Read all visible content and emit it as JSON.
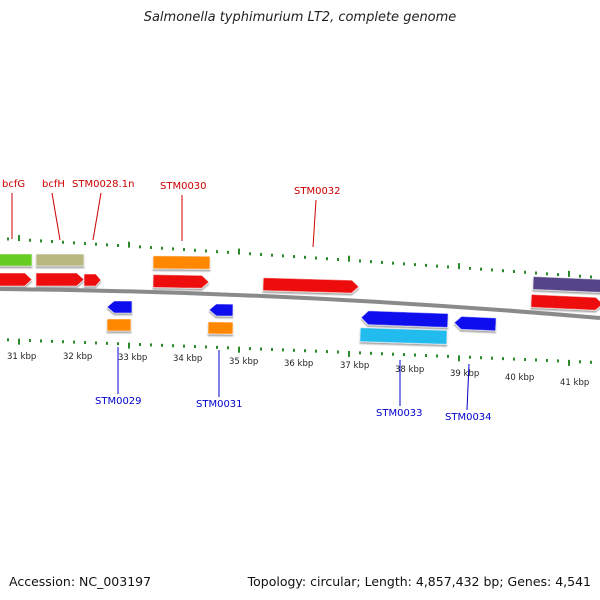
{
  "title": "Salmonella typhimurium LT2, complete genome",
  "accession": "Accession: NC_003197",
  "summary": "Topology: circular; Length: 4,857,432 bp; Genes: 4,541",
  "colors": {
    "forward_label": "#cc0000",
    "reverse_label": "#0000cc",
    "tick": "#2a8a2a",
    "backbone": "#888888"
  },
  "scale_labels": [
    "31 kbp",
    "32 kbp",
    "33 kbp",
    "34 kbp",
    "35 kbp",
    "36 kbp",
    "37 kbp",
    "38 kbp",
    "39 kbp",
    "40 kbp",
    "41 kbp"
  ],
  "forward_gene_labels": [
    "bcfG",
    "bcfH",
    "STM0028.1n",
    "STM0030",
    "STM0032"
  ],
  "reverse_gene_labels": [
    "STM0029",
    "STM0031",
    "STM0033",
    "STM0034"
  ],
  "features": [
    {
      "kind": "forward-cds",
      "color": "#ee1111",
      "strand": "+"
    },
    {
      "kind": "reverse-cds",
      "color": "#1111ee",
      "strand": "-"
    },
    {
      "kind": "forward-product",
      "color": "#ff8800",
      "strand": "+"
    },
    {
      "kind": "reverse-product",
      "color": "#ff8800",
      "strand": "-"
    },
    {
      "kind": "reverse-product",
      "color": "#22bbee",
      "strand": "-"
    },
    {
      "kind": "forward-product",
      "color": "#b8b880",
      "strand": "+"
    },
    {
      "kind": "forward-product",
      "color": "#66cc22",
      "strand": "+"
    },
    {
      "kind": "forward-product",
      "color": "#554488",
      "strand": "+"
    }
  ]
}
